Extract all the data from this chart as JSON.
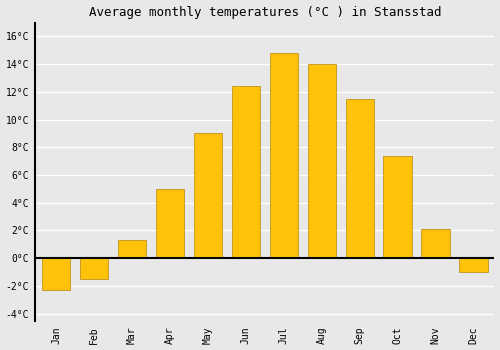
{
  "months": [
    "Jan",
    "Feb",
    "Mar",
    "Apr",
    "May",
    "Jun",
    "Jul",
    "Aug",
    "Sep",
    "Oct",
    "Nov",
    "Dec"
  ],
  "month_labels": [
    "Jan",
    "Feb",
    "Mar",
    "Apr",
    "May",
    "Jun",
    "Jul",
    "Aug",
    "Sep",
    "Oct",
    "Nov",
    "Dec"
  ],
  "temperatures": [
    -2.3,
    -1.5,
    1.3,
    5.0,
    9.0,
    12.4,
    14.8,
    14.0,
    11.5,
    7.4,
    2.1,
    -1.0
  ],
  "bar_color": "#FFC20A",
  "bar_edge_color": "#b8860b",
  "background_color": "#e8e8e8",
  "plot_bg_color": "#e8e8e8",
  "grid_color": "#ffffff",
  "title": "Average monthly temperatures (°C ) in Stansstad",
  "title_fontsize": 9,
  "tick_label_fontsize": 7,
  "ylim": [
    -4.5,
    17
  ],
  "yticks": [
    -4,
    -2,
    0,
    2,
    4,
    6,
    8,
    10,
    12,
    14,
    16
  ]
}
